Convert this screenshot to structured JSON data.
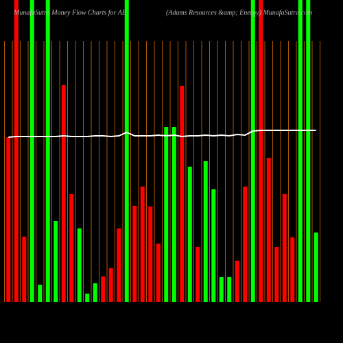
{
  "chart_data": {
    "type": "bar",
    "title": "MunafaSutra  Money Flow  Charts for AE",
    "subtitle": "(Adams Resources &amp; Energy) MunafaSutra.com",
    "values": [
      240,
      440,
      95,
      440,
      25,
      440,
      118,
      316,
      157,
      107,
      12,
      27,
      37,
      49,
      107,
      440,
      140,
      168,
      139,
      85,
      255,
      255,
      315,
      197,
      80,
      205,
      164,
      36,
      36,
      60,
      168,
      440,
      440,
      210,
      80,
      157,
      94,
      440,
      440,
      101
    ],
    "colors": [
      "#ff0000",
      "#ff0000",
      "#ff0000",
      "#00ff00",
      "#00ff00",
      "#00ff00",
      "#00ff00",
      "#ff0000",
      "#ff0000",
      "#00ff00",
      "#00ff00",
      "#00ff00",
      "#ff0000",
      "#ff0000",
      "#ff0000",
      "#00ff00",
      "#ff0000",
      "#ff0000",
      "#ff0000",
      "#ff0000",
      "#00ff00",
      "#00ff00",
      "#ff0000",
      "#00ff00",
      "#ff0000",
      "#00ff00",
      "#00ff00",
      "#00ff00",
      "#00ff00",
      "#ff0000",
      "#ff0000",
      "#00ff00",
      "#ff0000",
      "#ff0000",
      "#ff0000",
      "#ff0000",
      "#ff0000",
      "#00ff00",
      "#00ff00",
      "#00ff00"
    ],
    "line": {
      "color": "#ffffff",
      "values": [
        240,
        241,
        241,
        241,
        241,
        241,
        241,
        242,
        241,
        241,
        241,
        242,
        242,
        241,
        242,
        247,
        242,
        242,
        242,
        243,
        242,
        243,
        241,
        242,
        242,
        243,
        242,
        243,
        242,
        244,
        243,
        249,
        250,
        250,
        250,
        250,
        250,
        250,
        250,
        250
      ]
    },
    "ylim": [
      0,
      440
    ],
    "grid": true,
    "grid_color": "#b35900"
  }
}
